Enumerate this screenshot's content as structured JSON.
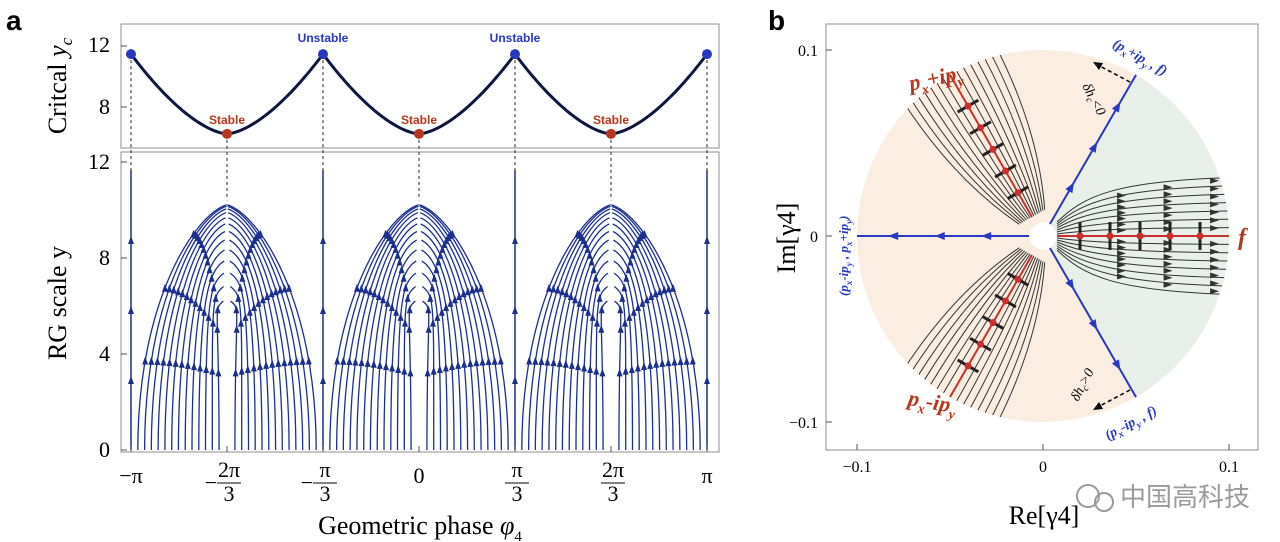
{
  "panels": {
    "a": "a",
    "b": "b"
  },
  "colors": {
    "flow": "#1b2f8f",
    "stable": "#b8361b",
    "unstable": "#2638c4",
    "red_line": "#c9302b",
    "pink_region": "#fbeee0",
    "green_region": "#e9efe9",
    "dark_curve": "#0c1640"
  },
  "chart_data": [
    {
      "type": "line",
      "panel": "a-top",
      "ylabel": "Critcal y_c",
      "ylim": [
        6.5,
        13.5
      ],
      "yticks": [
        8,
        12
      ],
      "curve": {
        "name": "critical line",
        "period_xticks": [
          "−π",
          "−2π/3",
          "−π/3",
          "0",
          "π/3",
          "2π/3",
          "π"
        ]
      },
      "unstable_points": [
        {
          "x": "−π",
          "y": 11.8
        },
        {
          "x": "−π/3",
          "y": 11.8
        },
        {
          "x": "π/3",
          "y": 11.8
        },
        {
          "x": "π",
          "y": 11.8
        }
      ],
      "stable_points": [
        {
          "x": "−2π/3",
          "y": 7.3
        },
        {
          "x": "0",
          "y": 7.3
        },
        {
          "x": "2π/3",
          "y": 7.3
        }
      ],
      "labels": {
        "unstable": "Unstable",
        "stable": "Stable"
      }
    },
    {
      "type": "line",
      "panel": "a-bottom",
      "title": "",
      "xlabel": "Geometric phase φ₄",
      "ylabel": "RG scale y",
      "ylim": [
        0,
        12.5
      ],
      "yticks": [
        "0",
        "4",
        "8",
        "12"
      ],
      "xticks": [
        {
          "pre": "−",
          "sym": "π"
        },
        {
          "pre": "−",
          "num": "2π",
          "den": "3"
        },
        {
          "pre": "−",
          "num": "π",
          "den": "3"
        },
        {
          "pre": "",
          "sym": "0"
        },
        {
          "pre": "",
          "num": "π",
          "den": "3"
        },
        {
          "pre": "",
          "num": "2π",
          "den": "3"
        },
        {
          "pre": "",
          "sym": "π"
        }
      ],
      "flow_apex_y": 10.4,
      "stable_fixed_y": 7.3,
      "note": ""
    },
    {
      "type": "scatter",
      "panel": "b",
      "xlabel": "Re[γ4]",
      "ylabel": "Im[γ4]",
      "xlim": [
        -0.11,
        0.11
      ],
      "ylim": [
        -0.11,
        0.11
      ],
      "xticks": [
        "−0.1",
        "0",
        "0.1"
      ],
      "yticks": [
        "0.1",
        "0",
        "−0.1"
      ],
      "phase_labels": {
        "pxipy": "p_x+ip_y",
        "pxmipy": "p_x-ip_y",
        "f": "f"
      },
      "boundary_labels": {
        "upper": "(p_x+ip_y , f)",
        "lower": "(p_x-ip_y , f)",
        "left": "(p_x-ip_y , p_x+ip_y)"
      },
      "arrows": {
        "upper": "δh_c<0",
        "lower": "δh_c>0"
      }
    }
  ],
  "watermark": "中国高科技"
}
